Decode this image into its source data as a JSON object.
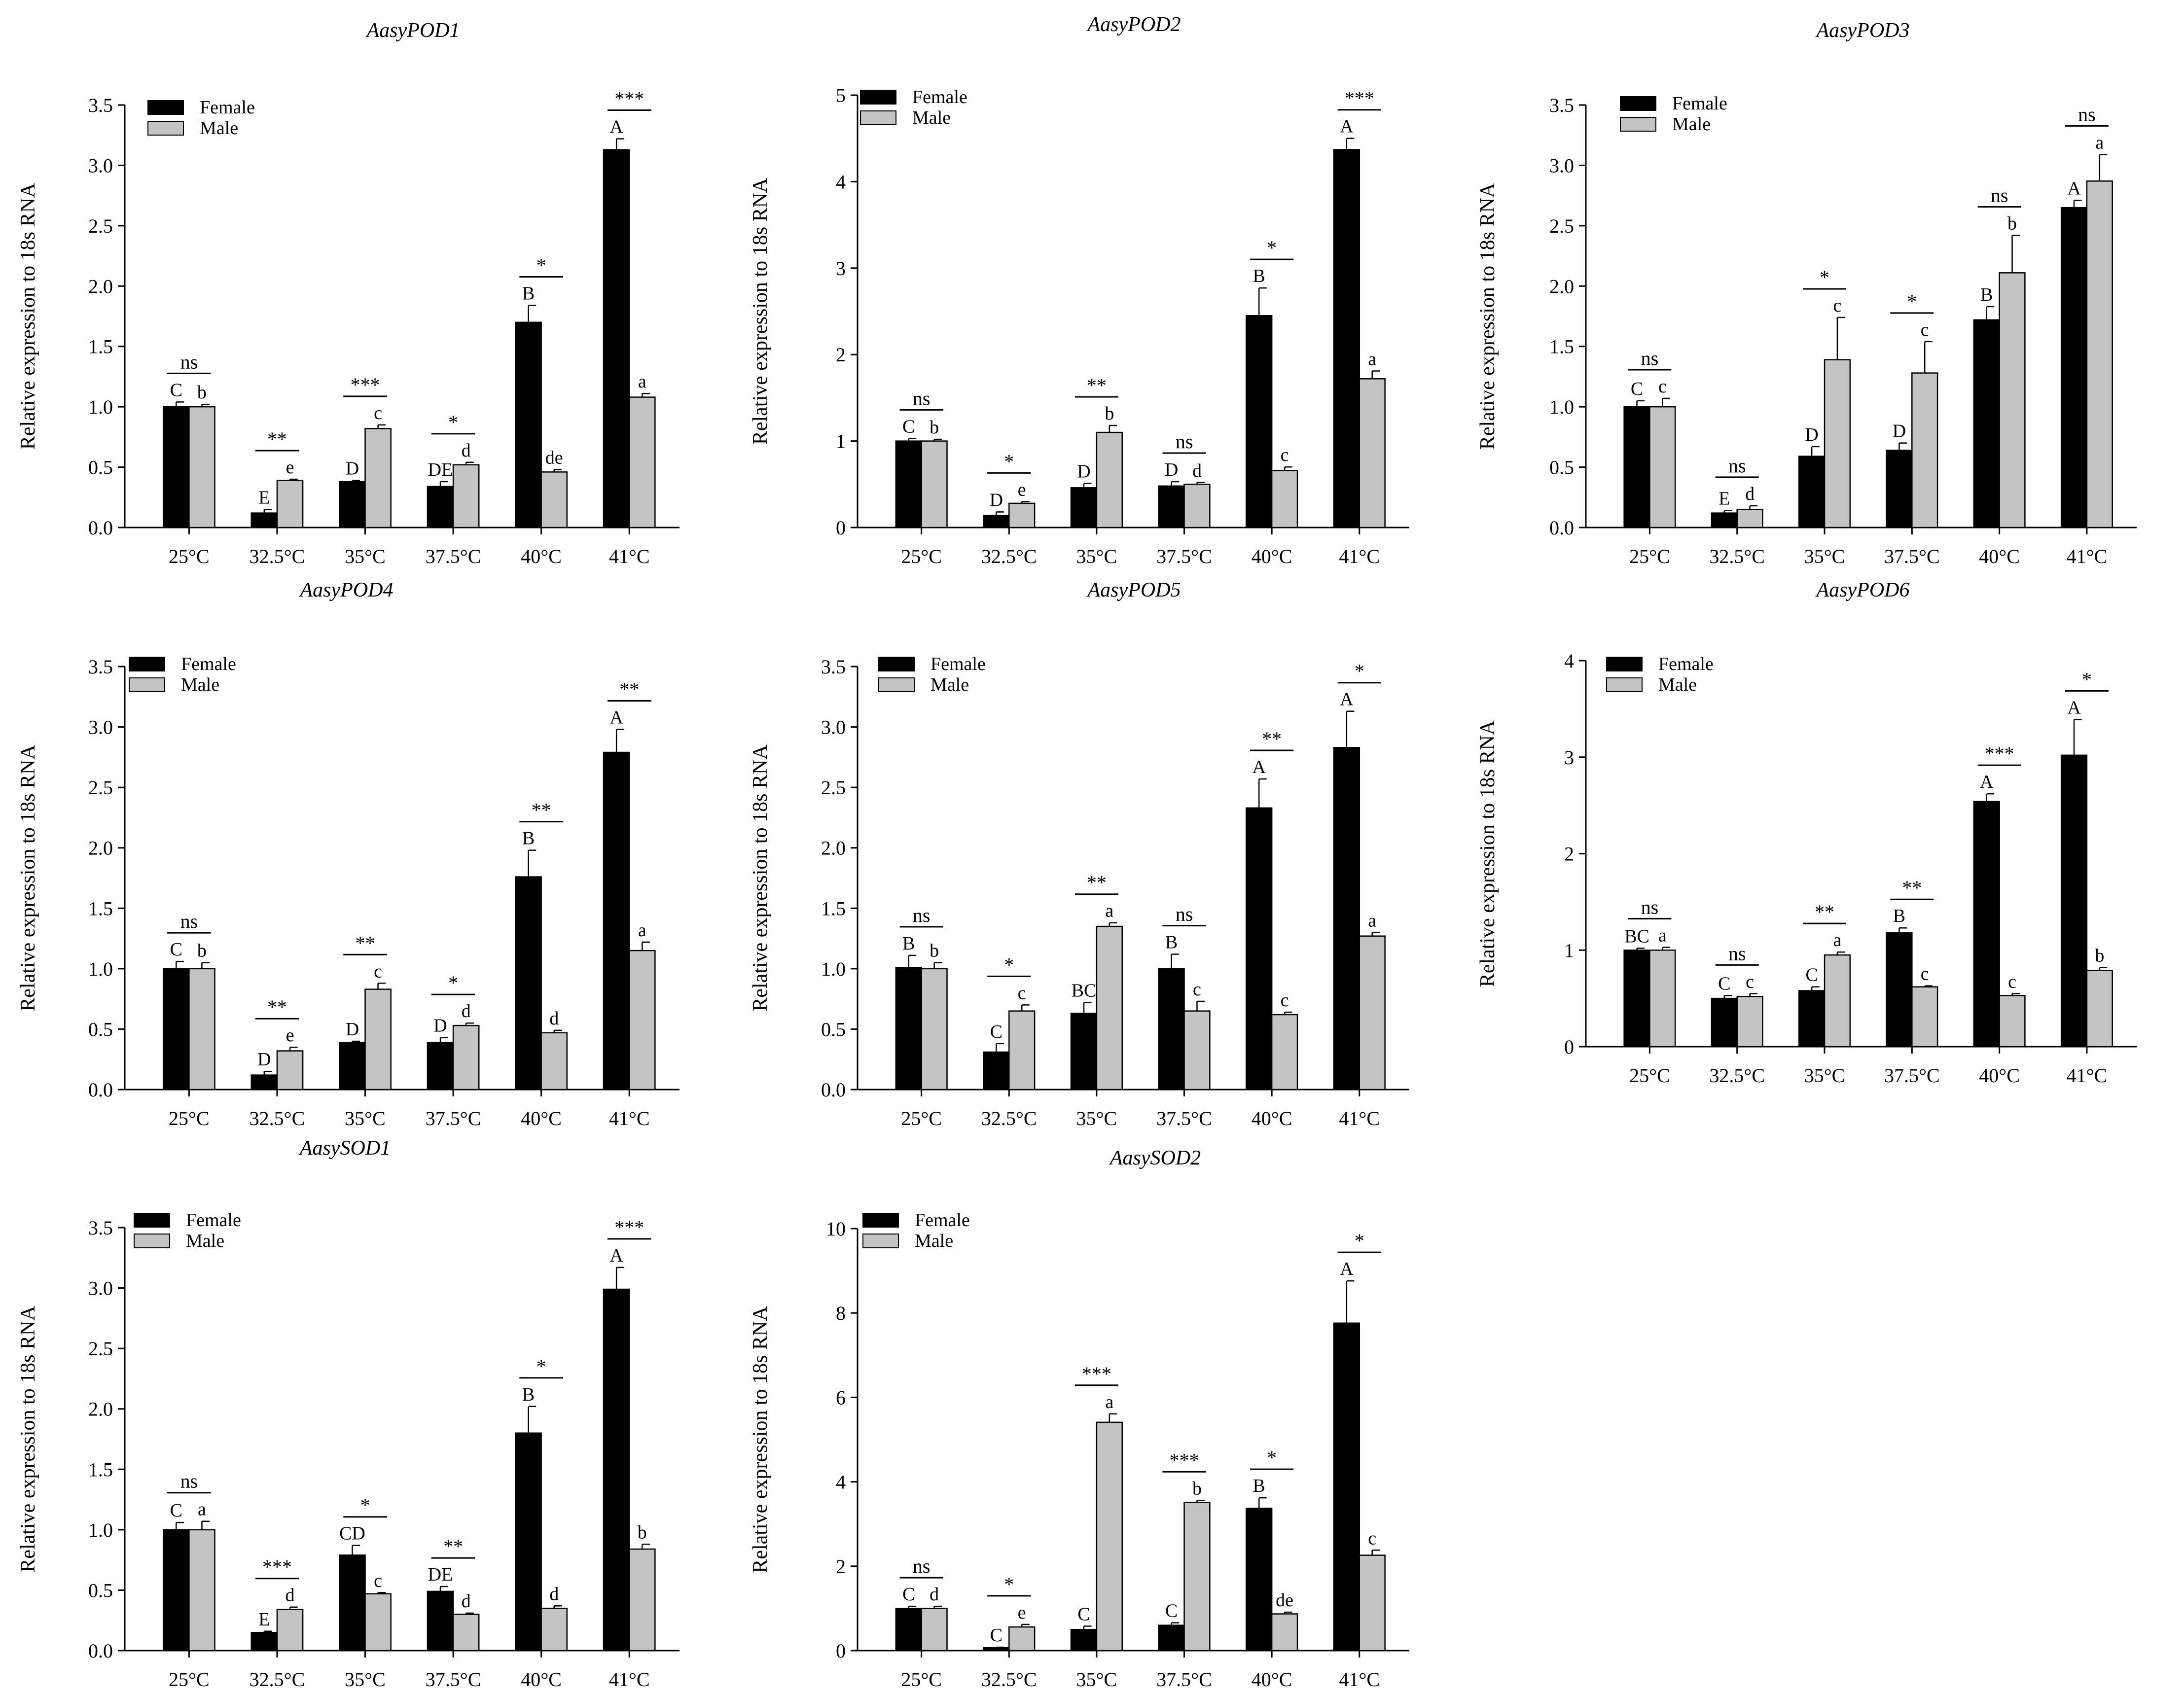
{
  "figure": {
    "categories": [
      "25°C",
      "32.5°C",
      "35°C",
      "37.5°C",
      "40°C",
      "41°C"
    ],
    "ylabel": "Relative expression to 18s RNA",
    "legend": [
      "Female",
      "Male"
    ],
    "colors": {
      "female": "#000000",
      "male": "#c4c4c4"
    }
  },
  "chart_data": [
    {
      "type": "bar",
      "title": "AasyPOD1",
      "ylabel": "Relative expression to 18s RNA",
      "categories": [
        "25°C",
        "32.5°C",
        "35°C",
        "37.5°C",
        "40°C",
        "41°C"
      ],
      "ylim": [
        0,
        3.5
      ],
      "ticks": [
        "0.0",
        "0.5",
        "1.0",
        "1.5",
        "2.0",
        "2.5",
        "3.0",
        "3.5"
      ],
      "series": [
        {
          "name": "Female",
          "values": [
            1.0,
            0.12,
            0.38,
            0.34,
            1.7,
            3.13
          ],
          "errors": [
            0.04,
            0.03,
            0.01,
            0.04,
            0.14,
            0.09
          ],
          "letters": [
            "C",
            "E",
            "D",
            "DE",
            "B",
            "A"
          ]
        },
        {
          "name": "Male",
          "values": [
            1.0,
            0.39,
            0.82,
            0.52,
            0.46,
            1.08
          ],
          "errors": [
            0.02,
            0.01,
            0.03,
            0.02,
            0.02,
            0.03
          ],
          "letters": [
            "b",
            "e",
            "c",
            "d",
            "de",
            "a"
          ]
        }
      ],
      "significance": [
        "ns",
        "**",
        "***",
        "*",
        "*",
        "***"
      ]
    },
    {
      "type": "bar",
      "title": "AasyPOD2",
      "ylabel": "Relative expression to 18s RNA",
      "categories": [
        "25°C",
        "32.5°C",
        "35°C",
        "37.5°C",
        "40°C",
        "41°C"
      ],
      "ylim": [
        0,
        5
      ],
      "ticks": [
        "0",
        "1",
        "2",
        "3",
        "4",
        "5"
      ],
      "series": [
        {
          "name": "Female",
          "values": [
            1.0,
            0.14,
            0.46,
            0.48,
            2.45,
            4.37
          ],
          "errors": [
            0.03,
            0.04,
            0.05,
            0.05,
            0.32,
            0.13
          ],
          "letters": [
            "C",
            "D",
            "D",
            "D",
            "B",
            "A"
          ]
        },
        {
          "name": "Male",
          "values": [
            1.0,
            0.28,
            1.1,
            0.5,
            0.66,
            1.72
          ],
          "errors": [
            0.02,
            0.02,
            0.08,
            0.02,
            0.04,
            0.09
          ],
          "letters": [
            "b",
            "e",
            "b",
            "d",
            "c",
            "a"
          ]
        }
      ],
      "significance": [
        "ns",
        "*",
        "**",
        "ns",
        "*",
        "***"
      ]
    },
    {
      "type": "bar",
      "title": "AasyPOD3",
      "ylabel": "Relative expression to 18s RNA",
      "categories": [
        "25°C",
        "32.5°C",
        "35°C",
        "37.5°C",
        "40°C",
        "41°C"
      ],
      "ylim": [
        0,
        3.5
      ],
      "ticks": [
        "0.0",
        "0.5",
        "1.0",
        "1.5",
        "2.0",
        "2.5",
        "3.0",
        "3.5"
      ],
      "series": [
        {
          "name": "Female",
          "values": [
            1.0,
            0.12,
            0.59,
            0.64,
            1.72,
            2.65
          ],
          "errors": [
            0.05,
            0.02,
            0.08,
            0.06,
            0.11,
            0.06
          ],
          "letters": [
            "C",
            "E",
            "D",
            "D",
            "B",
            "A"
          ]
        },
        {
          "name": "Male",
          "values": [
            1.0,
            0.15,
            1.39,
            1.28,
            2.11,
            2.87
          ],
          "errors": [
            0.07,
            0.03,
            0.35,
            0.26,
            0.31,
            0.22
          ],
          "letters": [
            "c",
            "d",
            "c",
            "c",
            "b",
            "a"
          ]
        }
      ],
      "significance": [
        "ns",
        "ns",
        "*",
        "*",
        "ns",
        "ns"
      ]
    },
    {
      "type": "bar",
      "title": "AasyPOD4",
      "ylabel": "Relative expression to 18s RNA",
      "categories": [
        "25°C",
        "32.5°C",
        "35°C",
        "37.5°C",
        "40°C",
        "41°C"
      ],
      "ylim": [
        0,
        3.5
      ],
      "ticks": [
        "0.0",
        "0.5",
        "1.0",
        "1.5",
        "2.0",
        "2.5",
        "3.0",
        "3.5"
      ],
      "series": [
        {
          "name": "Female",
          "values": [
            1.0,
            0.12,
            0.39,
            0.39,
            1.76,
            2.79
          ],
          "errors": [
            0.06,
            0.03,
            0.01,
            0.04,
            0.22,
            0.19
          ],
          "letters": [
            "C",
            "D",
            "D",
            "D",
            "B",
            "A"
          ]
        },
        {
          "name": "Male",
          "values": [
            1.0,
            0.32,
            0.83,
            0.53,
            0.47,
            1.15
          ],
          "errors": [
            0.05,
            0.03,
            0.05,
            0.02,
            0.02,
            0.07
          ],
          "letters": [
            "b",
            "e",
            "c",
            "d",
            "d",
            "a"
          ]
        }
      ],
      "significance": [
        "ns",
        "**",
        "**",
        "*",
        "**",
        "**"
      ]
    },
    {
      "type": "bar",
      "title": "AasyPOD5",
      "ylabel": "Relative expression to 18s RNA",
      "categories": [
        "25°C",
        "32.5°C",
        "35°C",
        "37.5°C",
        "40°C",
        "41°C"
      ],
      "ylim": [
        0,
        3.5
      ],
      "ticks": [
        "0.0",
        "0.5",
        "1.0",
        "1.5",
        "2.0",
        "2.5",
        "3.0",
        "3.5"
      ],
      "series": [
        {
          "name": "Female",
          "values": [
            1.01,
            0.31,
            0.63,
            1.0,
            2.33,
            2.83
          ],
          "errors": [
            0.1,
            0.07,
            0.09,
            0.12,
            0.24,
            0.3
          ],
          "letters": [
            "B",
            "C",
            "BC",
            "B",
            "A",
            "A"
          ]
        },
        {
          "name": "Male",
          "values": [
            1.0,
            0.65,
            1.35,
            0.65,
            0.62,
            1.27
          ],
          "errors": [
            0.05,
            0.05,
            0.03,
            0.08,
            0.02,
            0.03
          ],
          "letters": [
            "b",
            "c",
            "a",
            "c",
            "c",
            "a"
          ]
        }
      ],
      "significance": [
        "ns",
        "*",
        "**",
        "ns",
        "**",
        "*"
      ]
    },
    {
      "type": "bar",
      "title": "AasyPOD6",
      "ylabel": "Relative expression to 18s RNA",
      "categories": [
        "25°C",
        "32.5°C",
        "35°C",
        "37.5°C",
        "40°C",
        "41°C"
      ],
      "ylim": [
        0,
        4
      ],
      "ticks": [
        "0",
        "1",
        "2",
        "3",
        "4"
      ],
      "series": [
        {
          "name": "Female",
          "values": [
            1.0,
            0.5,
            0.58,
            1.18,
            2.54,
            3.02
          ],
          "errors": [
            0.02,
            0.03,
            0.04,
            0.05,
            0.08,
            0.37
          ],
          "letters": [
            "BC",
            "C",
            "C",
            "B",
            "A",
            "A"
          ]
        },
        {
          "name": "Male",
          "values": [
            1.0,
            0.52,
            0.95,
            0.62,
            0.53,
            0.79
          ],
          "errors": [
            0.03,
            0.03,
            0.03,
            0.01,
            0.02,
            0.03
          ],
          "letters": [
            "a",
            "c",
            "a",
            "c",
            "c",
            "b"
          ]
        }
      ],
      "significance": [
        "ns",
        "ns",
        "**",
        "**",
        "***",
        "*"
      ]
    },
    {
      "type": "bar",
      "title": "AasySOD1",
      "ylabel": "Relative expression to 18s RNA",
      "categories": [
        "25°C",
        "32.5°C",
        "35°C",
        "37.5°C",
        "40°C",
        "41°C"
      ],
      "ylim": [
        0,
        3.5
      ],
      "ticks": [
        "0.0",
        "0.5",
        "1.0",
        "1.5",
        "2.0",
        "2.5",
        "3.0",
        "3.5"
      ],
      "series": [
        {
          "name": "Female",
          "values": [
            1.0,
            0.15,
            0.79,
            0.49,
            1.8,
            2.99
          ],
          "errors": [
            0.06,
            0.01,
            0.08,
            0.04,
            0.22,
            0.18
          ],
          "letters": [
            "C",
            "E",
            "CD",
            "DE",
            "B",
            "A"
          ]
        },
        {
          "name": "Male",
          "values": [
            1.0,
            0.34,
            0.47,
            0.3,
            0.35,
            0.84
          ],
          "errors": [
            0.07,
            0.02,
            0.01,
            0.01,
            0.02,
            0.04
          ],
          "letters": [
            "a",
            "d",
            "c",
            "d",
            "d",
            "b"
          ]
        }
      ],
      "significance": [
        "ns",
        "***",
        "*",
        "**",
        "*",
        "***"
      ]
    },
    {
      "type": "bar",
      "title": "AasySOD2",
      "ylabel": "Relative expression to 18s RNA",
      "categories": [
        "25°C",
        "32.5°C",
        "35°C",
        "37.5°C",
        "40°C",
        "41°C"
      ],
      "ylim": [
        0,
        10
      ],
      "ticks": [
        "0",
        "2",
        "4",
        "6",
        "8",
        "10"
      ],
      "series": [
        {
          "name": "Female",
          "values": [
            1.0,
            0.07,
            0.5,
            0.6,
            3.37,
            7.76
          ],
          "errors": [
            0.05,
            0.01,
            0.08,
            0.06,
            0.25,
            1.0
          ],
          "letters": [
            "C",
            "C",
            "C",
            "C",
            "B",
            "A"
          ]
        },
        {
          "name": "Male",
          "values": [
            1.0,
            0.56,
            5.41,
            3.51,
            0.87,
            2.26
          ],
          "errors": [
            0.05,
            0.06,
            0.2,
            0.05,
            0.04,
            0.12
          ],
          "letters": [
            "d",
            "e",
            "a",
            "b",
            "de",
            "c"
          ]
        }
      ],
      "significance": [
        "ns",
        "*",
        "***",
        "***",
        "*",
        "*"
      ]
    }
  ]
}
